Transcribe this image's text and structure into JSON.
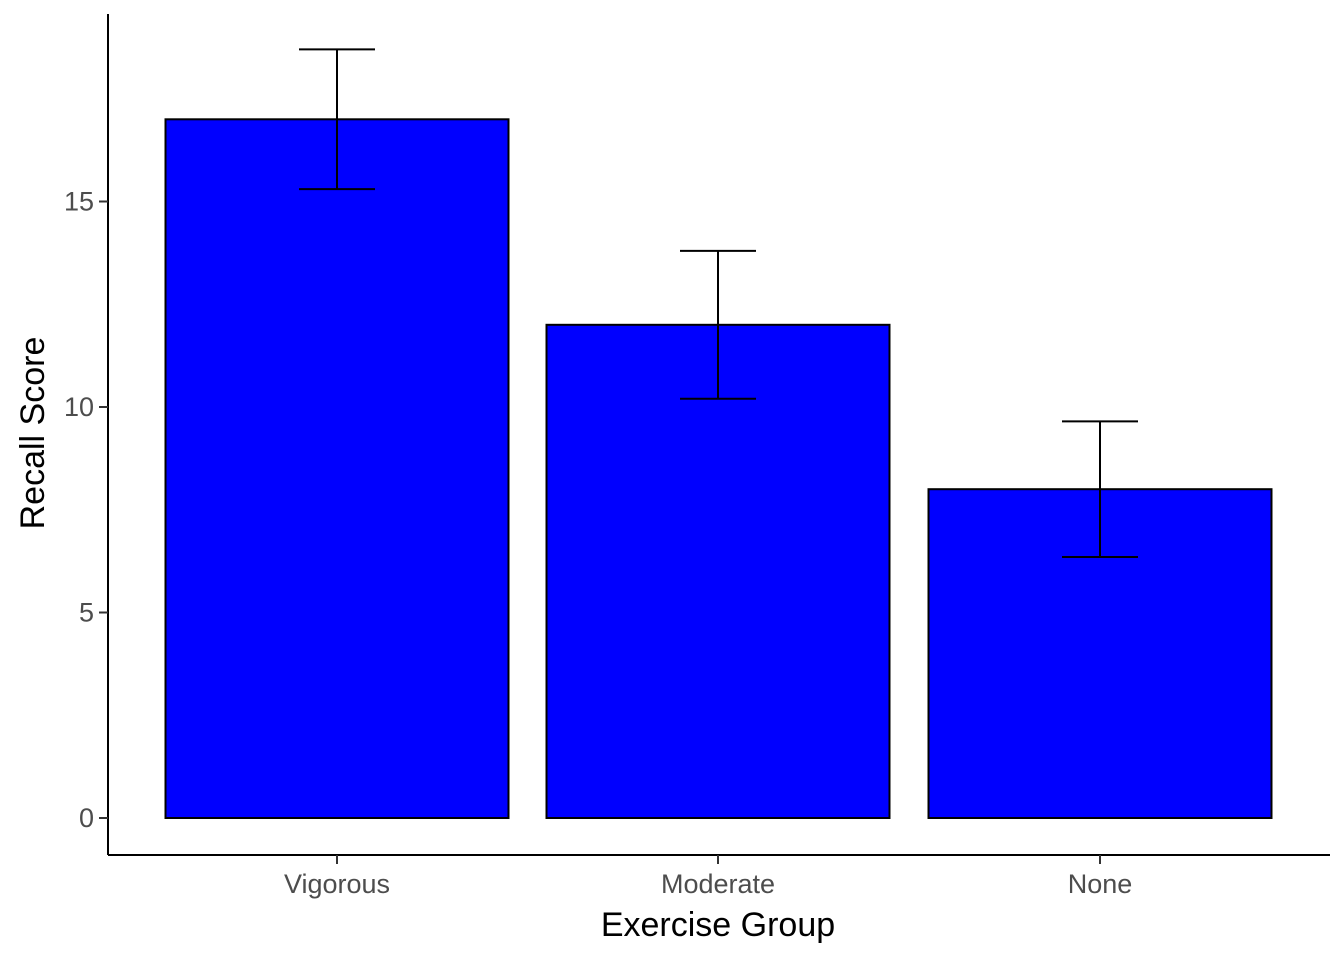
{
  "chart_data": {
    "type": "bar",
    "categories": [
      "Vigorous",
      "Moderate",
      "None"
    ],
    "values": [
      17,
      12,
      8
    ],
    "error_bars": [
      {
        "low": 15.3,
        "high": 18.7
      },
      {
        "low": 10.2,
        "high": 13.8
      },
      {
        "low": 6.35,
        "high": 9.65
      }
    ],
    "xlabel": "Exercise Group",
    "ylabel": "Recall Score",
    "ylim": [
      -0.9,
      19.4
    ],
    "yticks": [
      0,
      5,
      10,
      15
    ],
    "ytick_labels": [
      "0",
      "5",
      "10",
      "15"
    ],
    "bar_color": "#0000ff",
    "bar_border_color": "#000000",
    "grid": false,
    "legend": "none"
  }
}
